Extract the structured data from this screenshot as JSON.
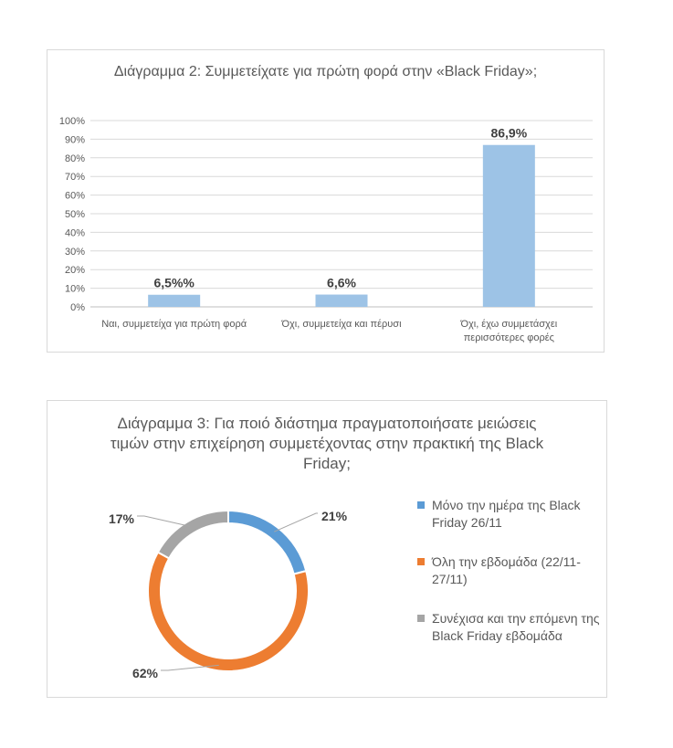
{
  "chart_data": [
    {
      "type": "bar",
      "title": "Διάγραμμα 2: Συμμετείχατε για πρώτη φορά στην «Black Friday»;",
      "categories": [
        "Ναι, συμμετείχα για πρώτη φορά",
        "Όχι, συμμετείχα και πέρυσι",
        "Όχι, έχω συμμετάσχει περισσότερες φορές"
      ],
      "values": [
        6.5,
        6.6,
        86.9
      ],
      "data_labels": [
        "6,5%%",
        "6,6%",
        "86,9%"
      ],
      "yticks": [
        "0%",
        "10%",
        "20%",
        "30%",
        "40%",
        "50%",
        "60%",
        "70%",
        "80%",
        "90%",
        "100%"
      ],
      "ylim": [
        0,
        100
      ],
      "grid": true,
      "bar_color": "#9dc3e6"
    },
    {
      "type": "pie",
      "donut": true,
      "title": "Διάγραμμα 3: Για ποιό διάστημα πραγματοποιήσατε μειώσεις τιμών στην επιχείρηση συμμετέχοντας στην πρακτική της Black Friday;",
      "series": [
        {
          "name": "Μόνο την ημέρα της Black Friday 26/11",
          "value": 21,
          "label": "21%",
          "color": "#5b9bd5"
        },
        {
          "name": "Όλη την εβδομάδα (22/11-27/11)",
          "value": 62,
          "label": "62%",
          "color": "#ed7d31"
        },
        {
          "name": "Συνέχισα και την επόμενη της Black Friday εβδομάδα",
          "value": 17,
          "label": "17%",
          "color": "#a5a5a5"
        }
      ],
      "legend_position": "right"
    }
  ]
}
